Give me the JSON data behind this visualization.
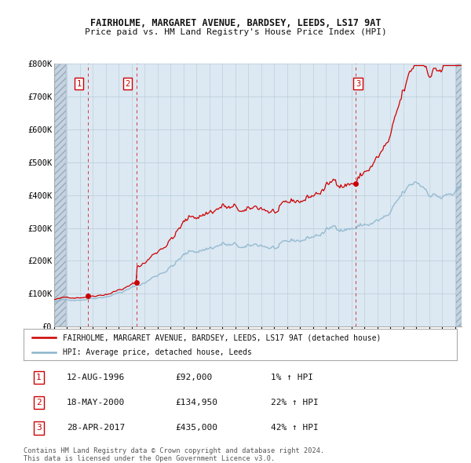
{
  "title1": "FAIRHOLME, MARGARET AVENUE, BARDSEY, LEEDS, LS17 9AT",
  "title2": "Price paid vs. HM Land Registry's House Price Index (HPI)",
  "sale_prices": [
    92000,
    134950,
    435000
  ],
  "sale_pct": [
    "1%",
    "22%",
    "42%"
  ],
  "sale_date_labels": [
    "12-AUG-1996",
    "18-MAY-2000",
    "28-APR-2017"
  ],
  "sale_price_labels": [
    "£92,000",
    "£134,950",
    "£435,000"
  ],
  "legend_line1": "FAIRHOLME, MARGARET AVENUE, BARDSEY, LEEDS, LS17 9AT (detached house)",
  "legend_line2": "HPI: Average price, detached house, Leeds",
  "footer1": "Contains HM Land Registry data © Crown copyright and database right 2024.",
  "footer2": "This data is licensed under the Open Government Licence v3.0.",
  "hpi_color": "#8ab4cc",
  "price_color": "#cc0000",
  "bg_color": "#ffffff",
  "plot_bg": "#dce8f2",
  "hatch_bg": "#c4d4e0",
  "grid_color": "#b8ccd8",
  "ylim": [
    0,
    800000
  ],
  "yticks": [
    0,
    100000,
    200000,
    300000,
    400000,
    500000,
    600000,
    700000,
    800000
  ],
  "ylabel_fmt": [
    "£0",
    "£100K",
    "£200K",
    "£300K",
    "£400K",
    "£500K",
    "£600K",
    "£700K",
    "£800K"
  ],
  "xmin": 1994.0,
  "xmax": 2025.5
}
